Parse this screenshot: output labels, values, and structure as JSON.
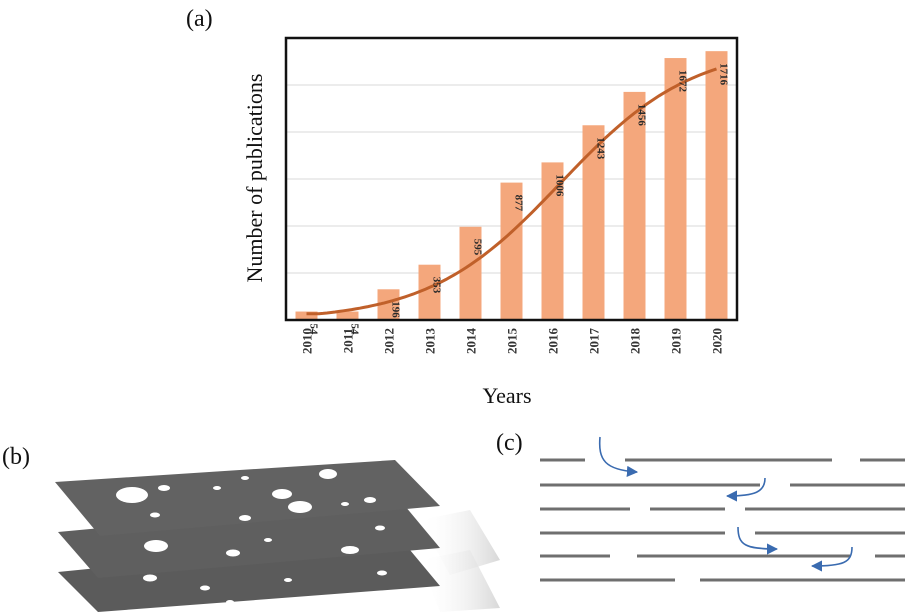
{
  "panels": {
    "a": "(a)",
    "b": "(b)",
    "c": "(c)"
  },
  "colors": {
    "bar": "#f4a77c",
    "trend": "#c0602a",
    "frame": "#111111",
    "grid": "#d9d9d9",
    "flow_arrow": "#3a6bb0",
    "sheet": "#5e5e5e"
  },
  "chart_data": {
    "type": "bar",
    "xlabel": "Years",
    "ylabel": "Number of publications",
    "categories": [
      "2010",
      "2011",
      "2012",
      "2013",
      "2014",
      "2015",
      "2016",
      "2017",
      "2018",
      "2019",
      "2020"
    ],
    "values": [
      54,
      54,
      196,
      353,
      595,
      877,
      1006,
      1243,
      1456,
      1672,
      1716
    ],
    "data_labels": [
      "54",
      "54",
      "196",
      "353",
      "595",
      "877",
      "1006",
      "1243",
      "1456",
      "1672",
      "1716"
    ],
    "ylim": [
      0,
      1800
    ],
    "grid": true,
    "trendline": true,
    "legend": false
  }
}
